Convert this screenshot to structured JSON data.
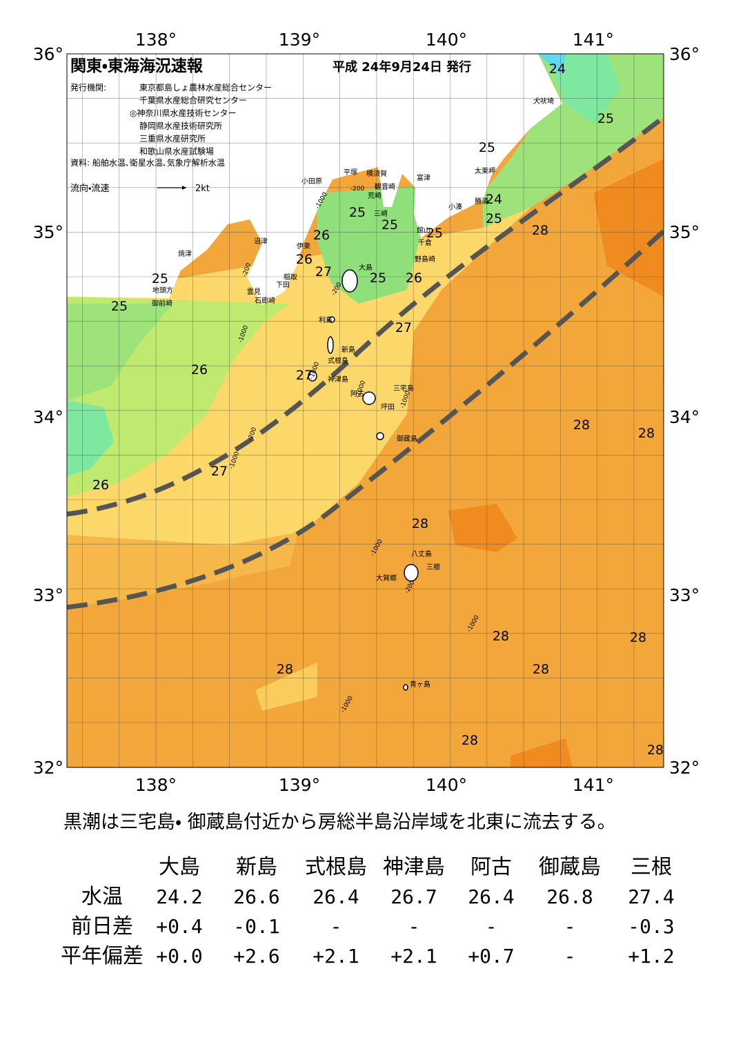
{
  "header": {
    "title": "関東・東海海況速報",
    "date": "平成 24年9月24日 発行",
    "issuer_label": "発行機関:",
    "issuers": [
      "東京都島しょ農林水産総合センター",
      "千葉県水産総合研究センター",
      "◎神奈川県水産技術センター",
      "静岡県水産技術研究所",
      "三重県水産研究所",
      "和歌山県水産試験場"
    ],
    "source": "資料: 船舶水温､衛星水温､気象庁解析水温",
    "legend_label": "流向・流速",
    "legend_scale": "2kt"
  },
  "axes": {
    "top": [
      "138°",
      "139°",
      "140°",
      "141°"
    ],
    "bottom": [
      "138°",
      "139°",
      "140°",
      "141°"
    ],
    "left": [
      "36°",
      "35°",
      "34°",
      "33°",
      "32°"
    ],
    "right": [
      "36°",
      "35°",
      "34°",
      "33°",
      "32°"
    ]
  },
  "place_names": [
    "小田原",
    "平塚",
    "横須賀",
    "富津",
    "観音崎",
    "荒崎",
    "三崎",
    "太東岬",
    "勝浦",
    "小湊",
    "館山",
    "千倉",
    "野島崎",
    "沼津",
    "伊東",
    "焼津",
    "稲取",
    "下田",
    "雲見",
    "石廊崎",
    "地頭方",
    "御前崎",
    "大島",
    "利島",
    "新島",
    "式根島",
    "神津島",
    "三宅島",
    "阿古",
    "坪田",
    "御蔵島",
    "八丈島",
    "三根",
    "大賀郷",
    "青ヶ島",
    "犬吠埼"
  ],
  "contour_labels": [
    "24",
    "25",
    "25",
    "24",
    "25",
    "28",
    "25",
    "25",
    "25",
    "26",
    "26",
    "27",
    "25",
    "26",
    "25",
    "25",
    "27",
    "26",
    "27",
    "28",
    "28",
    "26",
    "27",
    "28",
    "28",
    "28",
    "28",
    "28",
    "28",
    "28"
  ],
  "isobath_labels": [
    "-200",
    "-1000",
    "-200",
    "-1000",
    "-200",
    "-1000",
    "-200",
    "-1000",
    "-1000",
    "-1000",
    "-200",
    "-1000",
    "-1000",
    "-1000"
  ],
  "summary": "黒潮は三宅島・ 御蔵島付近から房総半島沿岸域を北東に流去する。",
  "table": {
    "columns": [
      "大島",
      "新島",
      "式根島",
      "神津島",
      "阿古",
      "御蔵島",
      "三根"
    ],
    "rows": [
      {
        "label": "水温",
        "values": [
          "24.2",
          "26.6",
          "26.4",
          "26.7",
          "26.4",
          "26.8",
          "27.4"
        ]
      },
      {
        "label": "前日差",
        "values": [
          "+0.4",
          "-0.1",
          "-",
          "-",
          "-",
          "-",
          "-0.3"
        ]
      },
      {
        "label": "平年偏差",
        "values": [
          "+0.0",
          "+2.6",
          "+2.1",
          "+2.1",
          "+0.7",
          "-",
          "+1.2"
        ]
      }
    ]
  }
}
